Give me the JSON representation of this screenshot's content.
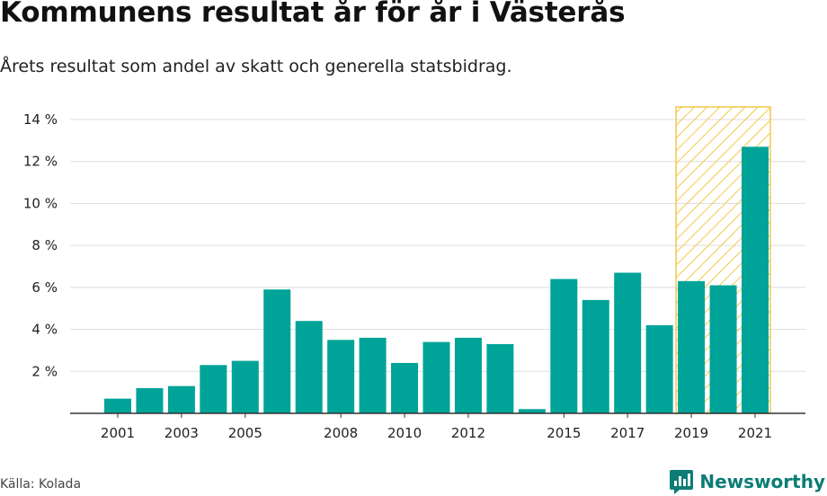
{
  "header": {
    "title": "Kommunens resultat år för år i Västerås",
    "subtitle": "Årets resultat som andel av skatt och generella statsbidrag."
  },
  "footer": {
    "source": "Källa: Kolada",
    "brand": "Newsworthy"
  },
  "colors": {
    "bar": "#00a398",
    "highlight_stroke": "#f3c84c",
    "grid": "#dddddd",
    "axis": "#333333"
  },
  "chart_data": {
    "type": "bar",
    "title": "Kommunens resultat år för år i Västerås",
    "subtitle": "Årets resultat som andel av skatt och generella statsbidrag.",
    "xlabel": "",
    "ylabel": "",
    "categories": [
      "2001",
      "2002",
      "2003",
      "2004",
      "2005",
      "2006",
      "2007",
      "2008",
      "2009",
      "2010",
      "2011",
      "2012",
      "2013",
      "2014",
      "2015",
      "2016",
      "2017",
      "2018",
      "2019",
      "2020",
      "2021"
    ],
    "x_tick_labels": [
      "2001",
      "",
      "2003",
      "",
      "2005",
      "",
      "",
      "2008",
      "",
      "2010",
      "",
      "2012",
      "",
      "",
      "2015",
      "",
      "2017",
      "",
      "2019",
      "",
      "2021"
    ],
    "values": [
      0.7,
      1.2,
      1.3,
      2.3,
      2.5,
      5.9,
      4.4,
      3.5,
      3.6,
      2.4,
      3.4,
      3.6,
      3.3,
      0.2,
      6.4,
      5.4,
      6.7,
      4.2,
      6.3,
      6.1,
      12.7
    ],
    "ylim": [
      0,
      14.6
    ],
    "y_ticks": [
      2,
      4,
      6,
      8,
      10,
      12,
      14
    ],
    "y_tick_labels": [
      "2 %",
      "4 %",
      "6 %",
      "8 %",
      "10 %",
      "12 %",
      "14 %"
    ],
    "grid": true,
    "highlight": {
      "categories": [
        "2019",
        "2020",
        "2021"
      ],
      "style": "hatched"
    }
  }
}
